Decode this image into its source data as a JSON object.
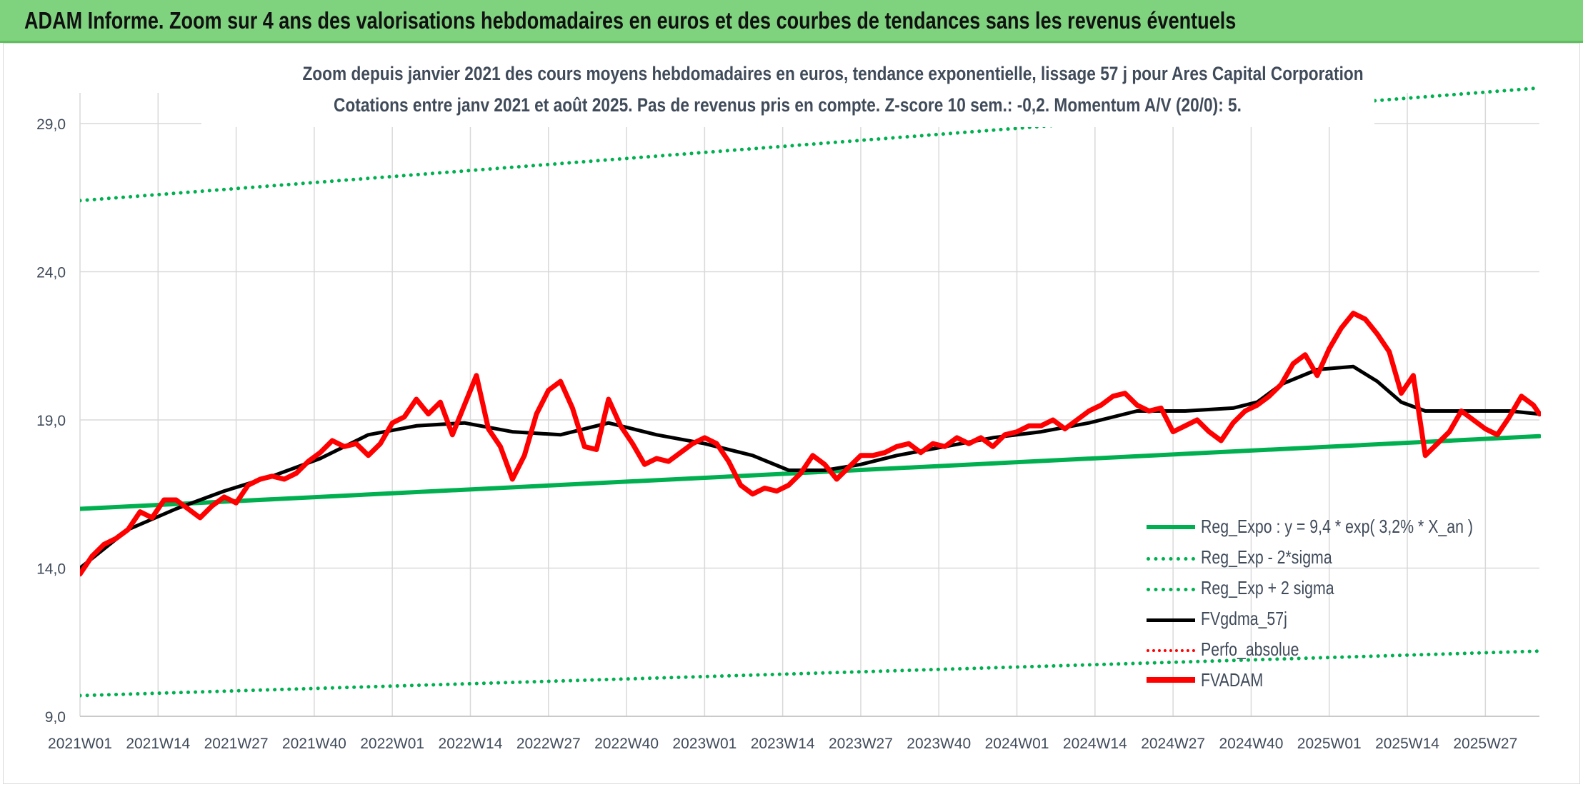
{
  "banner": {
    "title": "ADAM Informe. Zoom sur 4 ans des valorisations hebdomadaires en euros et des courbes de tendances sans les revenus éventuels"
  },
  "chart_data": {
    "type": "line",
    "title": "Zoom depuis janvier 2021 des cours moyens hebdomadaires en euros, tendance exponentielle, lissage 57 j pour Ares Capital Corporation",
    "subtitle": "Cotations entre janv 2021 et août 2025. Pas de revenus pris en compte. Z-score 10 sem.: -0,2. Momentum A/V (20/0): 5.",
    "xlabel": "",
    "ylabel": "",
    "ylim": [
      9,
      29.5
    ],
    "yticks": [
      "9,0",
      "14,0",
      "19,0",
      "24,0",
      "29,0"
    ],
    "ytick_values": [
      9,
      14,
      19,
      24,
      29
    ],
    "x_tick_labels": [
      "2021W01",
      "2021W14",
      "2021W27",
      "2021W40",
      "2022W01",
      "2022W14",
      "2022W27",
      "2022W40",
      "2023W01",
      "2023W14",
      "2023W27",
      "2023W40",
      "2024W01",
      "2024W14",
      "2024W27",
      "2024W40",
      "2025W01",
      "2025W14",
      "2025W27"
    ],
    "x_tick_weeks": [
      0,
      13,
      26,
      39,
      52,
      65,
      78,
      91,
      104,
      117,
      130,
      143,
      156,
      169,
      182,
      195,
      208,
      221,
      234
    ],
    "x_range_weeks": [
      0,
      243
    ],
    "grid": true,
    "legend_position": "bottom-right",
    "series": [
      {
        "name": "Reg_Expo : y = 9,4 * exp( 3,2% *  X_an )",
        "color": "#00b050",
        "style": "solid",
        "x": [
          0,
          243
        ],
        "values": [
          16.0,
          18.45
        ]
      },
      {
        "name": "Reg_Exp - 2*sigma",
        "color": "#00b050",
        "style": "dotted",
        "x": [
          0,
          243
        ],
        "values": [
          9.7,
          11.2
        ]
      },
      {
        "name": "Reg_Exp + 2 sigma",
        "color": "#00b050",
        "style": "dotted",
        "x": [
          0,
          243
        ],
        "values": [
          26.4,
          30.2
        ]
      },
      {
        "name": "FVgdma_57j",
        "color": "#000000",
        "style": "solid",
        "x": [
          0,
          8,
          16,
          24,
          32,
          40,
          48,
          56,
          64,
          72,
          80,
          88,
          96,
          104,
          112,
          118,
          124,
          130,
          136,
          144,
          152,
          160,
          168,
          176,
          184,
          192,
          196,
          200,
          206,
          212,
          216,
          220,
          224,
          232,
          238,
          243
        ],
        "values": [
          14.0,
          15.3,
          16.0,
          16.6,
          17.1,
          17.7,
          18.5,
          18.8,
          18.9,
          18.6,
          18.5,
          18.9,
          18.5,
          18.2,
          17.8,
          17.3,
          17.3,
          17.5,
          17.8,
          18.1,
          18.4,
          18.6,
          18.9,
          19.3,
          19.3,
          19.4,
          19.6,
          20.2,
          20.7,
          20.8,
          20.3,
          19.6,
          19.3,
          19.3,
          19.3,
          19.2
        ]
      },
      {
        "name": "Perfo_absolue",
        "color": "#ff0000",
        "style": "dotted",
        "x": [],
        "values": []
      },
      {
        "name": "FVADAM",
        "color": "#ff0000",
        "style": "solid",
        "x": [
          0,
          2,
          4,
          6,
          8,
          10,
          12,
          14,
          16,
          18,
          20,
          22,
          24,
          26,
          28,
          30,
          32,
          34,
          36,
          38,
          40,
          42,
          44,
          46,
          48,
          50,
          52,
          54,
          56,
          58,
          60,
          62,
          64,
          66,
          68,
          70,
          72,
          74,
          76,
          78,
          80,
          82,
          84,
          86,
          88,
          90,
          92,
          94,
          96,
          98,
          100,
          102,
          104,
          106,
          108,
          110,
          112,
          114,
          116,
          118,
          120,
          122,
          124,
          126,
          128,
          130,
          132,
          134,
          136,
          138,
          140,
          142,
          144,
          146,
          148,
          150,
          152,
          154,
          156,
          158,
          160,
          162,
          164,
          166,
          168,
          170,
          172,
          174,
          176,
          178,
          180,
          182,
          184,
          186,
          188,
          190,
          192,
          194,
          196,
          198,
          200,
          202,
          204,
          206,
          208,
          210,
          212,
          214,
          216,
          218,
          220,
          222,
          224,
          226,
          228,
          230,
          232,
          234,
          236,
          238,
          240,
          242,
          243
        ],
        "values": [
          13.8,
          14.4,
          14.8,
          15.0,
          15.3,
          15.9,
          15.7,
          16.3,
          16.3,
          16.0,
          15.7,
          16.1,
          16.4,
          16.2,
          16.8,
          17.0,
          17.1,
          17.0,
          17.2,
          17.6,
          17.9,
          18.3,
          18.1,
          18.2,
          17.8,
          18.2,
          18.9,
          19.1,
          19.7,
          19.2,
          19.6,
          18.5,
          19.5,
          20.5,
          18.7,
          18.1,
          17.0,
          17.8,
          19.2,
          20.0,
          20.3,
          19.4,
          18.1,
          18.0,
          19.7,
          18.8,
          18.2,
          17.5,
          17.7,
          17.6,
          17.9,
          18.2,
          18.4,
          18.2,
          17.6,
          16.8,
          16.5,
          16.7,
          16.6,
          16.8,
          17.2,
          17.8,
          17.5,
          17.0,
          17.4,
          17.8,
          17.8,
          17.9,
          18.1,
          18.2,
          17.9,
          18.2,
          18.1,
          18.4,
          18.2,
          18.4,
          18.1,
          18.5,
          18.6,
          18.8,
          18.8,
          19.0,
          18.7,
          19.0,
          19.3,
          19.5,
          19.8,
          19.9,
          19.5,
          19.3,
          19.4,
          18.6,
          18.8,
          19.0,
          18.6,
          18.3,
          18.9,
          19.3,
          19.5,
          19.8,
          20.2,
          20.9,
          21.2,
          20.5,
          21.4,
          22.1,
          22.6,
          22.4,
          21.9,
          21.3,
          19.9,
          20.5,
          17.8,
          18.2,
          18.6,
          19.3,
          19.0,
          18.7,
          18.5,
          19.1,
          19.8,
          19.5,
          19.2
        ]
      }
    ]
  }
}
